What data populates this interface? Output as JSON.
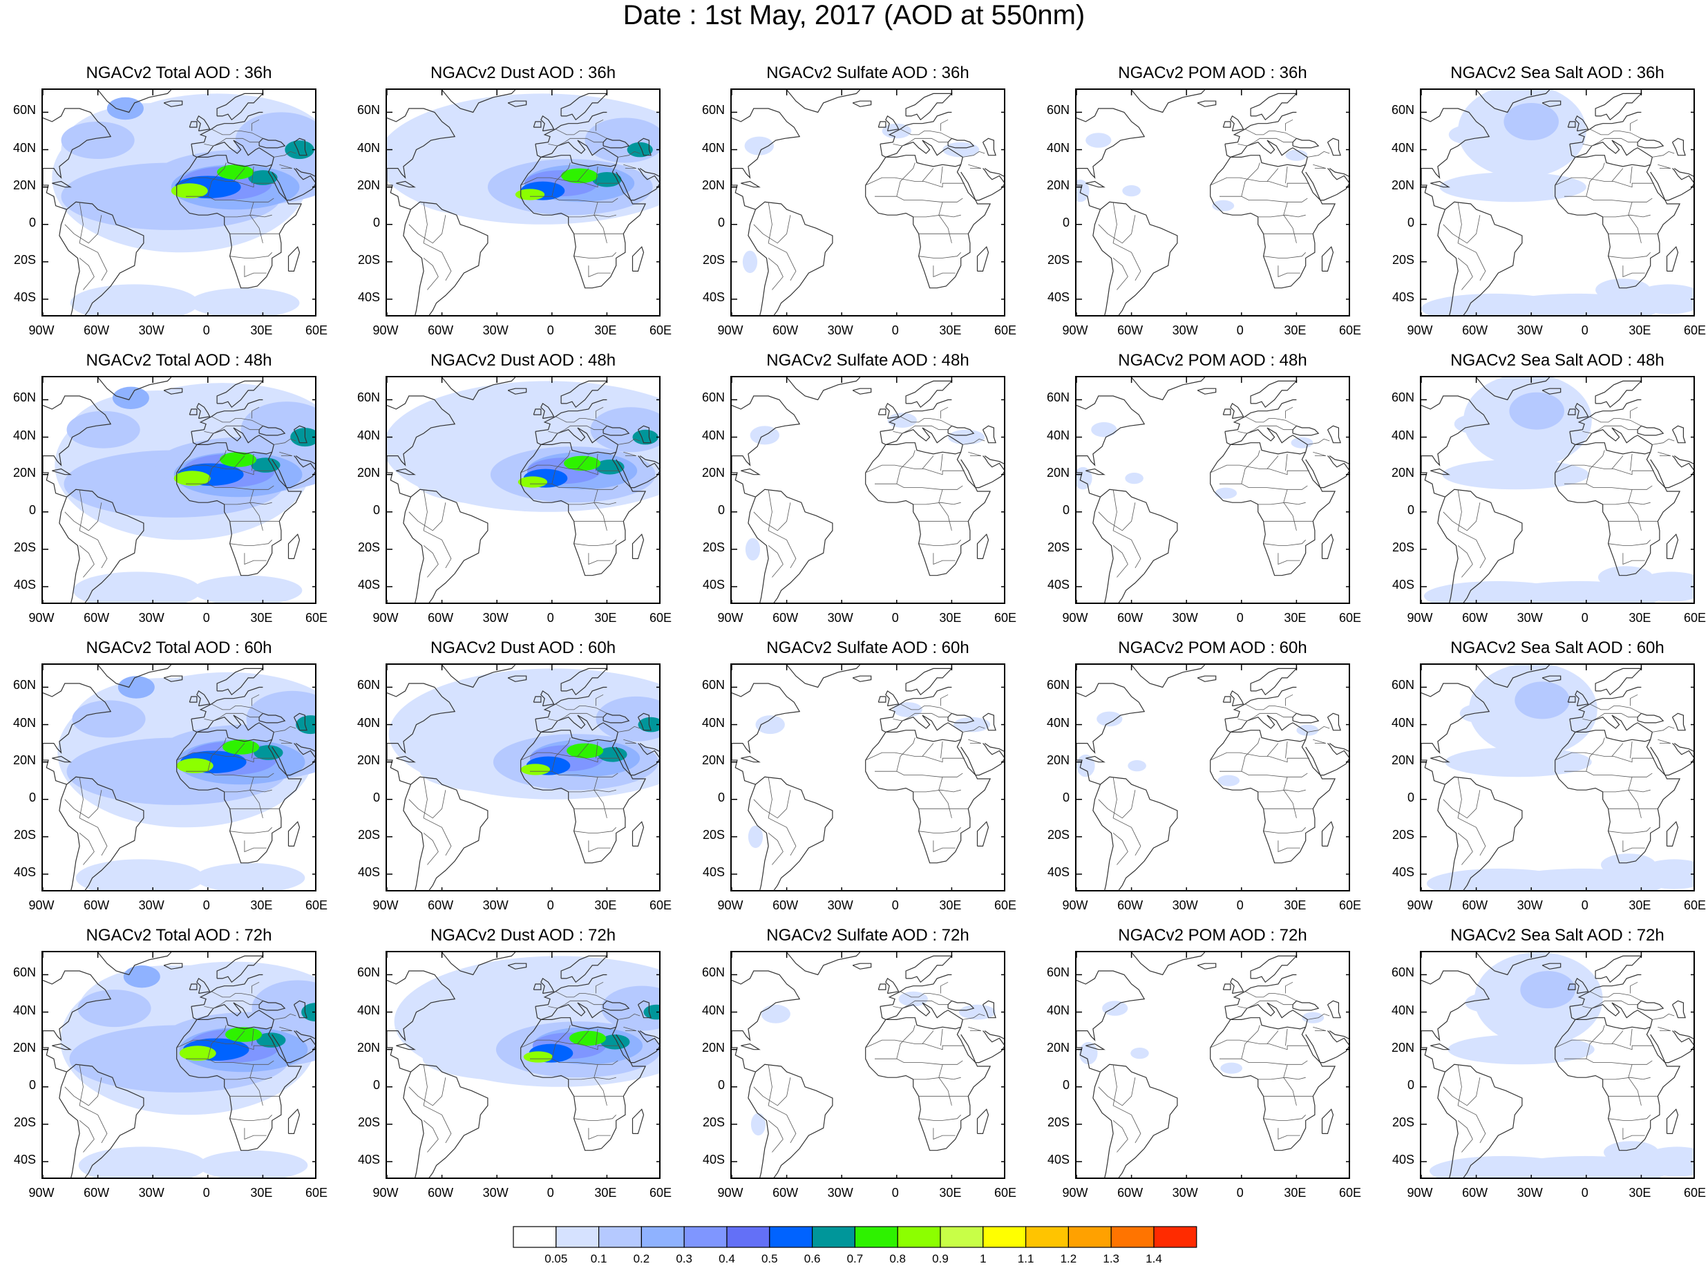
{
  "title": "Date : 1st May, 2017 (AOD at 550nm)",
  "lat_ticks": [
    "60N",
    "40N",
    "20N",
    "0",
    "20S",
    "40S"
  ],
  "lon_ticks": [
    "90W",
    "60W",
    "30W",
    "0",
    "30E",
    "60E"
  ],
  "columns": [
    {
      "key": "total",
      "label_prefix": "NGACv2 Total AOD : "
    },
    {
      "key": "dust",
      "label_prefix": "NGACv2 Dust AOD : "
    },
    {
      "key": "sulfate",
      "label_prefix": "NGACv2 Sulfate AOD : "
    },
    {
      "key": "pom",
      "label_prefix": "NGACv2 POM AOD : "
    },
    {
      "key": "seasalt",
      "label_prefix": "NGACv2 Sea Salt AOD : "
    }
  ],
  "panels": [
    [
      "NGACv2 Total AOD : 36h",
      "NGACv2 Dust AOD : 36h",
      "NGACv2 Sulfate AOD : 36h",
      "NGACv2 POM AOD : 36h",
      "NGACv2 Sea Salt AOD : 36h"
    ],
    [
      "NGACv2 Total AOD : 48h",
      "NGACv2 Dust AOD : 48h",
      "NGACv2 Sulfate AOD : 48h",
      "NGACv2 POM AOD : 48h",
      "NGACv2 Sea Salt AOD : 48h"
    ],
    [
      "NGACv2 Total AOD : 60h",
      "NGACv2 Dust AOD : 60h",
      "NGACv2 Sulfate AOD : 60h",
      "NGACv2 POM AOD : 60h",
      "NGACv2 Sea Salt AOD : 60h"
    ],
    [
      "NGACv2 Total AOD : 72h",
      "NGACv2 Dust AOD : 72h",
      "NGACv2 Sulfate AOD : 72h",
      "NGACv2 POM AOD : 72h",
      "NGACv2 Sea Salt  AOD : 72h"
    ]
  ],
  "colorbar": {
    "labels": [
      "0.05",
      "0.1",
      "0.2",
      "0.3",
      "0.4",
      "0.5",
      "0.6",
      "0.7",
      "0.8",
      "0.9",
      "1",
      "1.1",
      "1.2",
      "1.3",
      "1.4"
    ],
    "colors": [
      "#ffffff",
      "#d6e2ff",
      "#b5c9ff",
      "#8fb2ff",
      "#7f96ff",
      "#6370f7",
      "#0063ff",
      "#00969a",
      "#2ef200",
      "#8cff00",
      "#c8ff47",
      "#ffff00",
      "#ffc400",
      "#ffa100",
      "#ff7400",
      "#ff2b00"
    ]
  },
  "chart_data": {
    "type": "heatmap",
    "title": "Date : 1st May, 2017 (AOD at 550nm)",
    "variable": "AOD at 550nm",
    "lon_range": [
      -90,
      60
    ],
    "lat_range": [
      -50,
      72
    ],
    "forecast_hours": [
      "36h",
      "48h",
      "60h",
      "72h"
    ],
    "species": [
      "Total",
      "Dust",
      "Sulfate",
      "POM",
      "Sea Salt"
    ],
    "levels": [
      0.05,
      0.1,
      0.2,
      0.3,
      0.4,
      0.5,
      0.6,
      0.7,
      0.8,
      0.9,
      1,
      1.1,
      1.2,
      1.3,
      1.4
    ]
  }
}
